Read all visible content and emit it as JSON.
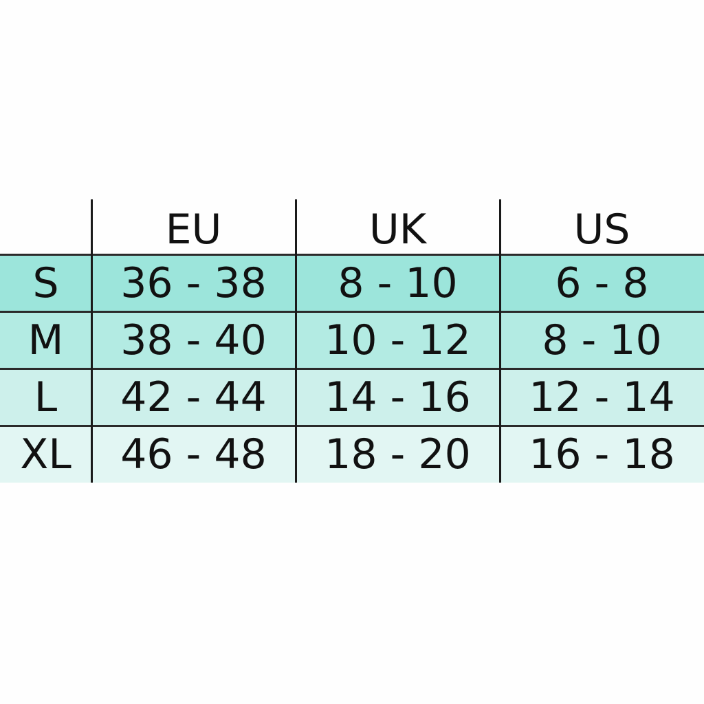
{
  "table": {
    "columns": [
      "EU",
      "UK",
      "US"
    ],
    "rows": [
      [
        "S",
        "36 - 38",
        "8 - 10",
        "6 - 8"
      ],
      [
        "M",
        "38 - 40",
        "10 - 12",
        "8 - 10"
      ],
      [
        "L",
        "42 - 44",
        "14 - 16",
        "12 - 14"
      ],
      [
        "XL",
        "46 - 48",
        "18 - 20",
        "16 - 18"
      ]
    ]
  }
}
